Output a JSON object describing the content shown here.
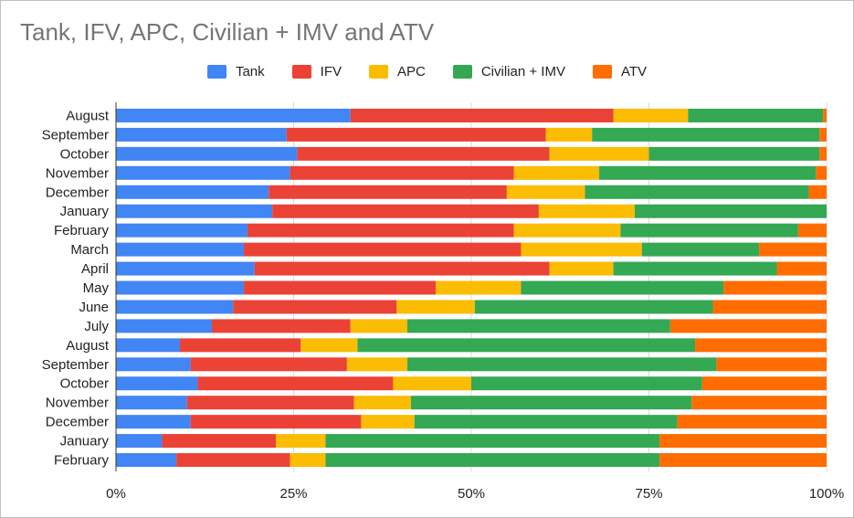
{
  "title": "Tank, IFV, APC, Civilian + IMV and ATV",
  "chart_data": {
    "type": "bar",
    "orientation": "horizontal",
    "stacked": "percent",
    "title": "Tank, IFV, APC, Civilian + IMV and ATV",
    "xlabel": "",
    "ylabel": "",
    "xlim": [
      0,
      100
    ],
    "x_ticks": [
      "0%",
      "25%",
      "50%",
      "75%",
      "100%"
    ],
    "grid": true,
    "legend_position": "top",
    "categories": [
      "August",
      "September",
      "October",
      "November",
      "December",
      "January",
      "February",
      "March",
      "April",
      "May",
      "June",
      "July",
      "August",
      "September",
      "October",
      "November",
      "December",
      "January",
      "February"
    ],
    "series": [
      {
        "name": "Tank",
        "color": "#4285f4",
        "values": [
          33,
          24,
          25.5,
          24.5,
          21.5,
          22,
          18.5,
          18,
          19.5,
          18,
          16.5,
          13.5,
          9,
          10.5,
          11.5,
          10,
          10.5,
          6.5,
          8.5
        ]
      },
      {
        "name": "IFV",
        "color": "#ea4335",
        "values": [
          37,
          36.5,
          35.5,
          31.5,
          33.5,
          37.5,
          37.5,
          39,
          41.5,
          27,
          23,
          19.5,
          17,
          22,
          27.5,
          23.5,
          24,
          16,
          16
        ]
      },
      {
        "name": "APC",
        "color": "#fbbc04",
        "values": [
          10.5,
          6.5,
          14,
          12,
          11,
          13.5,
          15,
          17,
          9,
          12,
          11,
          8,
          8,
          8.5,
          11,
          8,
          7.5,
          7,
          5
        ]
      },
      {
        "name": "Civilian + IMV",
        "color": "#34a853",
        "values": [
          19,
          32,
          24,
          30.5,
          31.5,
          27,
          25,
          16.5,
          23,
          28.5,
          33.5,
          37,
          47.5,
          43.5,
          32.5,
          39.5,
          37,
          47,
          47
        ]
      },
      {
        "name": "ATV",
        "color": "#ff6d01",
        "values": [
          0.5,
          1,
          1,
          1.5,
          2.5,
          0,
          4,
          9.5,
          7,
          14.5,
          16,
          22,
          18.5,
          15.5,
          17.5,
          19,
          21,
          23.5,
          23.5
        ]
      }
    ]
  }
}
